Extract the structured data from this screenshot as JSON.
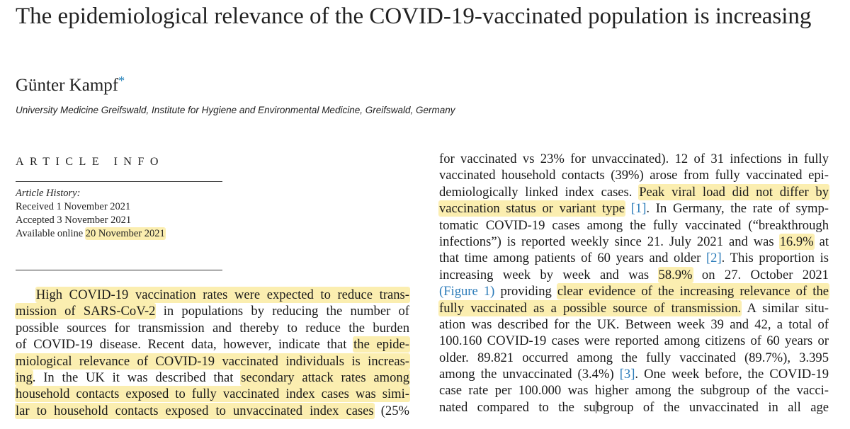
{
  "title": "The epidemiological relevance of the COVID-19-vaccinated population is increasing",
  "author": {
    "name": "Günter Kampf",
    "mark": "*"
  },
  "affiliation": "University Medicine Greifswald, Institute for Hygiene and Environmental Medicine, Greifswald, Germany",
  "article_info": {
    "heading": "ARTICLE INFO",
    "history_label": "Article History:",
    "received": "Received 1 November 2021",
    "accepted": "Accepted 3 November 2021",
    "available_prefix": "Available online ",
    "available_date": "20 November 2021"
  },
  "left_col": {
    "l1_a": "High COVID-19 vaccination rates were expected to reduce trans-",
    "l2_a": "mission of SARS-CoV-2",
    "l2_b": " in populations by reducing the number of",
    "l3": "possible sources for transmission and thereby to reduce the burden",
    "l4_a": "of COVID-19 disease. Recent data, however, indicate that ",
    "l4_b": "the epide-",
    "l5": "miological relevance of COVID-19 vaccinated individuals is increas-",
    "l6_a": "ing",
    "l6_b": ". In the UK it was described that ",
    "l6_c": "secondary attack rates among",
    "l7": "household contacts exposed to fully vaccinated index cases was simi-",
    "l8_a": "lar to household contacts exposed to unvaccinated index cases",
    "l8_b": " (25%"
  },
  "right_col": {
    "r1": "for vaccinated vs 23% for unvaccinated). 12 of 31 infections in fully",
    "r2": "vaccinated household contacts (39%) arose from fully vaccinated epi-",
    "r3_a": "demiologically linked index cases. ",
    "r3_b": "Peak viral load did not differ by",
    "r4_a": "vaccination status or variant type",
    "r4_b": " ",
    "r4_ref": "[1]",
    "r4_c": ". In Germany, the rate of symp-",
    "r5": "tomatic COVID-19 cases among the fully vaccinated (“breakthrough",
    "r6_a": "infections”) is reported weekly since 21. July 2021 and was ",
    "r6_b": "16.9%",
    "r6_c": " at",
    "r7_a": "that time among patients of 60 years and older ",
    "r7_ref": "[2]",
    "r7_b": ". This proportion is",
    "r8_a": "increasing week by week and was ",
    "r8_b": "58.9%",
    "r8_c": " on 27. October 2021",
    "r9_ref": "(Figure 1)",
    "r9_a": " providing ",
    "r9_b": "clear evidence of the increasing relevance of the",
    "r10_a": "fully vaccinated as a possible source of transmission.",
    "r10_b": " A similar situ-",
    "r11": "ation was described for the UK. Between week 39 and 42, a total of",
    "r12": "100.160 COVID-19 cases were reported among citizens of 60 years or",
    "r13": "older. 89.821 occurred among the fully vaccinated (89.7%), 3.395",
    "r14_a": "among the unvaccinated (3.4%) ",
    "r14_ref": "[3]",
    "r14_b": ". One week before, the COVID-19",
    "r15": "case rate per 100.000 was higher among the subgroup of the vacci-",
    "r16_a": "nated compared to the su",
    "r16_b": "bgroup of the unvaccinated in all age"
  },
  "colors": {
    "highlight": "#fbeeb0",
    "link": "#2b7bb9"
  }
}
